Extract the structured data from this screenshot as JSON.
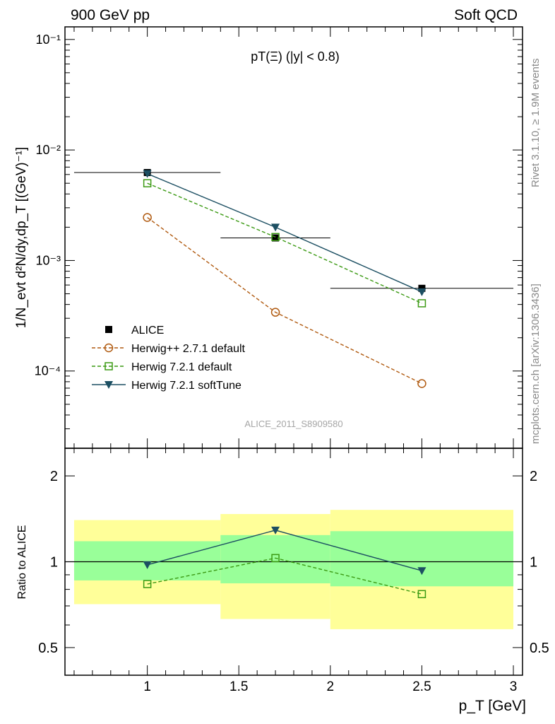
{
  "header": {
    "left": "900 GeV pp",
    "right": "Soft QCD"
  },
  "side_text": {
    "rivet": "Rivet 3.1.10, ≥ 1.9M events",
    "mcplots": "mcplots.cern.ch [arXiv:1306.3436]"
  },
  "chart_data": [
    {
      "panel": "main",
      "type": "scatter",
      "title": "pT(Ξ) (|y| < 0.8)",
      "watermark": "ALICE_2011_S8909580",
      "ylabel": "1/N_evt d²N/dy,dp_T [(GeV)⁻¹]",
      "yscale": "log",
      "xlim": [
        0.55,
        3.05
      ],
      "ylim": [
        2e-05,
        0.13
      ],
      "y_ticks": [
        {
          "label": "10⁻¹",
          "value": 0.1
        },
        {
          "label": "10⁻²",
          "value": 0.01
        },
        {
          "label": "10⁻³",
          "value": 0.001
        },
        {
          "label": "10⁻⁴",
          "value": 0.0001
        }
      ],
      "legend_position": "lower-left",
      "series": [
        {
          "name": "ALICE",
          "style": "filled-square",
          "color": "#000000",
          "x": [
            1.0,
            1.7,
            2.5
          ],
          "y": [
            0.00625,
            0.0016,
            0.00056
          ],
          "xerr": [
            [
              0.6,
              1.4
            ],
            [
              1.4,
              2.0
            ],
            [
              2.0,
              3.0
            ]
          ]
        },
        {
          "name": "Herwig++ 2.7.1 default",
          "style": "open-circle-dashed",
          "color": "#b05a10",
          "x": [
            1.0,
            1.7,
            2.5
          ],
          "y": [
            0.00245,
            0.00034,
            7.7e-05
          ]
        },
        {
          "name": "Herwig 7.2.1 default",
          "style": "open-square-dashed",
          "color": "#3c9a14",
          "x": [
            1.0,
            1.7,
            2.5
          ],
          "y": [
            0.005,
            0.00163,
            0.00041
          ]
        },
        {
          "name": "Herwig 7.2.1 softTune",
          "style": "filled-triangle-solid",
          "color": "#1c4f62",
          "x": [
            1.0,
            1.7,
            2.5
          ],
          "y": [
            0.0061,
            0.002,
            0.00052
          ]
        }
      ]
    },
    {
      "panel": "ratio",
      "type": "line",
      "ylabel": "Ratio to ALICE",
      "xlabel": "p_T [GeV]",
      "yscale": "log",
      "xlim": [
        0.55,
        3.05
      ],
      "ylim": [
        0.4,
        2.5
      ],
      "x_ticks": [
        {
          "label": "1",
          "value": 1.0
        },
        {
          "label": "1.5",
          "value": 1.5
        },
        {
          "label": "2",
          "value": 2.0
        },
        {
          "label": "2.5",
          "value": 2.5
        },
        {
          "label": "3",
          "value": 3.0
        }
      ],
      "y_ticks": [
        {
          "label": "2",
          "value": 2.0
        },
        {
          "label": "1",
          "value": 1.0
        },
        {
          "label": "0.5",
          "value": 0.5
        }
      ],
      "bands": [
        {
          "x": [
            0.6,
            1.4
          ],
          "yellow": [
            0.71,
            1.4
          ],
          "green": [
            0.86,
            1.18
          ]
        },
        {
          "x": [
            1.4,
            2.0
          ],
          "yellow": [
            0.63,
            1.47
          ],
          "green": [
            0.84,
            1.24
          ]
        },
        {
          "x": [
            2.0,
            3.0
          ],
          "yellow": [
            0.58,
            1.52
          ],
          "green": [
            0.82,
            1.28
          ]
        }
      ],
      "series": [
        {
          "name": "Herwig 7.2.1 default",
          "style": "open-square-dashed",
          "color": "#3c9a14",
          "x": [
            1.0,
            1.7,
            2.5
          ],
          "y": [
            0.835,
            1.03,
            0.77
          ]
        },
        {
          "name": "Herwig 7.2.1 softTune",
          "style": "filled-triangle-solid",
          "color": "#1c4f62",
          "x": [
            1.0,
            1.7,
            2.5
          ],
          "y": [
            0.975,
            1.29,
            0.93
          ]
        }
      ]
    }
  ]
}
